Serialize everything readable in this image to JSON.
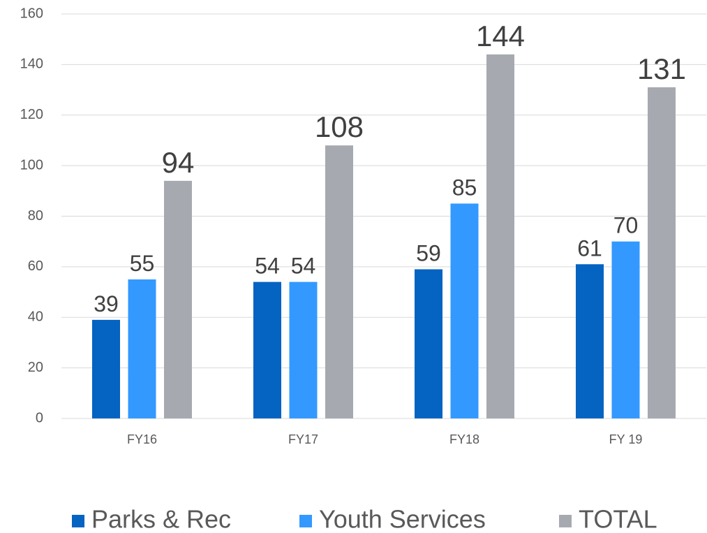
{
  "chart_data": {
    "type": "bar",
    "categories": [
      "FY16",
      "FY17",
      "FY18",
      "FY 19"
    ],
    "series": [
      {
        "name": "Parks & Rec",
        "color": "#0563c1",
        "values": [
          39,
          54,
          59,
          61
        ]
      },
      {
        "name": "Youth Services",
        "color": "#3399ff",
        "values": [
          55,
          54,
          85,
          70
        ]
      },
      {
        "name": "TOTAL",
        "color": "#a6a9b0",
        "values": [
          94,
          108,
          144,
          131
        ]
      }
    ],
    "ylim": [
      0,
      160
    ],
    "yticks": [
      0,
      20,
      40,
      60,
      80,
      100,
      120,
      140,
      160
    ],
    "grid": true,
    "legend": "bottom"
  }
}
